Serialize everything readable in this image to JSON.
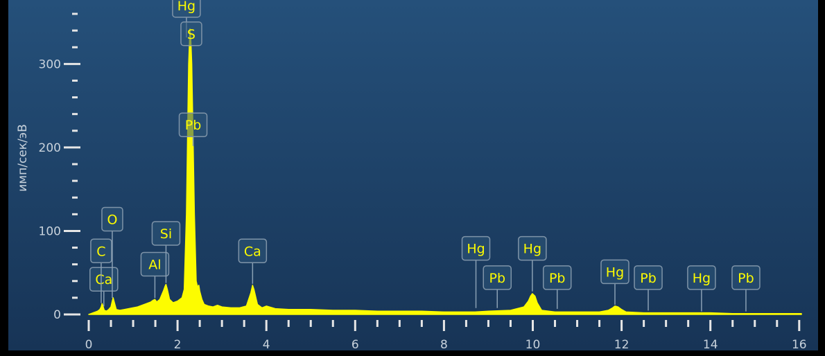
{
  "chart_data": {
    "type": "line",
    "title": "",
    "xlabel": "",
    "ylabel": "имп/сек/эВ",
    "xlim": [
      0,
      16.05
    ],
    "ylim": [
      0,
      360
    ],
    "x_ticks": [
      0,
      2,
      4,
      6,
      8,
      10,
      12,
      14,
      16
    ],
    "y_ticks": [
      0,
      100,
      200,
      300
    ],
    "grid": false,
    "legend": "none",
    "colors": {
      "background_top": "#25507a",
      "background_bottom": "#173456",
      "spectrum": "#fdfc00",
      "label_text": "#fdfc00",
      "axis": "#e6e6e6"
    },
    "series": [
      {
        "x": [
          0,
          0.05,
          0.1,
          0.15,
          0.2,
          0.25,
          0.28,
          0.3,
          0.32,
          0.35,
          0.4,
          0.45,
          0.5,
          0.53,
          0.55,
          0.58,
          0.62,
          0.7,
          0.8,
          0.9,
          1.0,
          1.1,
          1.2,
          1.3,
          1.4,
          1.45,
          1.49,
          1.53,
          1.6,
          1.68,
          1.72,
          1.74,
          1.77,
          1.82,
          1.9,
          2.0,
          2.1,
          2.15,
          2.2,
          2.25,
          2.28,
          2.3,
          2.32,
          2.35,
          2.38,
          2.42,
          2.45,
          2.48,
          2.5,
          2.55,
          2.6,
          2.7,
          2.8,
          2.9,
          3.0,
          3.2,
          3.4,
          3.55,
          3.65,
          3.69,
          3.72,
          3.8,
          3.9,
          4.0,
          4.2,
          4.5,
          5.0,
          5.5,
          6.0,
          6.5,
          7.0,
          7.5,
          8.0,
          8.5,
          8.7,
          9.0,
          9.5,
          9.8,
          9.9,
          9.95,
          9.99,
          10.05,
          10.1,
          10.2,
          10.5,
          11.0,
          11.5,
          11.7,
          11.8,
          11.85,
          11.92,
          12.0,
          12.1,
          12.5,
          13.0,
          13.5,
          14.0,
          14.5,
          15.0,
          15.5,
          16.05
        ],
        "y": [
          0,
          1,
          2,
          3,
          4,
          6,
          9,
          13,
          10,
          5,
          4,
          6,
          9,
          16,
          20,
          14,
          6,
          5,
          6,
          7,
          8,
          9,
          11,
          13,
          15,
          17,
          18,
          15,
          18,
          28,
          34,
          36,
          30,
          18,
          14,
          16,
          20,
          30,
          120,
          300,
          342,
          328,
          300,
          210,
          120,
          40,
          33,
          35,
          28,
          18,
          12,
          10,
          9,
          11,
          9,
          8,
          8,
          10,
          26,
          35,
          30,
          12,
          8,
          10,
          7,
          6,
          6,
          5,
          5,
          4,
          4,
          4,
          3,
          3,
          3,
          4,
          5,
          9,
          16,
          22,
          25,
          22,
          14,
          5,
          3,
          3,
          3,
          5,
          8,
          10,
          9,
          6,
          3,
          2,
          2,
          2,
          2,
          1,
          1,
          1,
          1
        ]
      }
    ],
    "annotations": [
      {
        "text": "Ca",
        "x": 0.34,
        "y": 8,
        "box_y": 28
      },
      {
        "text": "C",
        "x": 0.28,
        "y": 12,
        "box_y": 62
      },
      {
        "text": "O",
        "x": 0.53,
        "y": 18,
        "box_y": 100
      },
      {
        "text": "Al",
        "x": 1.49,
        "y": 18,
        "box_y": 46
      },
      {
        "text": "Si",
        "x": 1.74,
        "y": 36,
        "box_y": 83
      },
      {
        "text": "Hg",
        "x": 2.2,
        "y": 330,
        "box_y": 356
      },
      {
        "text": "S",
        "x": 2.31,
        "y": 330,
        "box_y": 322
      },
      {
        "text": "Pb",
        "x": 2.35,
        "y": 200,
        "box_y": 213
      },
      {
        "text": "Ca",
        "x": 3.69,
        "y": 35,
        "box_y": 62
      },
      {
        "text": "Hg",
        "x": 8.72,
        "y": 6,
        "box_y": 65
      },
      {
        "text": "Pb",
        "x": 9.2,
        "y": 6,
        "box_y": 30
      },
      {
        "text": "Hg",
        "x": 9.99,
        "y": 26,
        "box_y": 65
      },
      {
        "text": "Pb",
        "x": 10.55,
        "y": 5,
        "box_y": 30
      },
      {
        "text": "Hg",
        "x": 11.85,
        "y": 10,
        "box_y": 37
      },
      {
        "text": "Pb",
        "x": 12.6,
        "y": 3,
        "box_y": 30
      },
      {
        "text": "Hg",
        "x": 13.8,
        "y": 2,
        "box_y": 30
      },
      {
        "text": "Pb",
        "x": 14.8,
        "y": 2,
        "box_y": 30
      }
    ]
  }
}
